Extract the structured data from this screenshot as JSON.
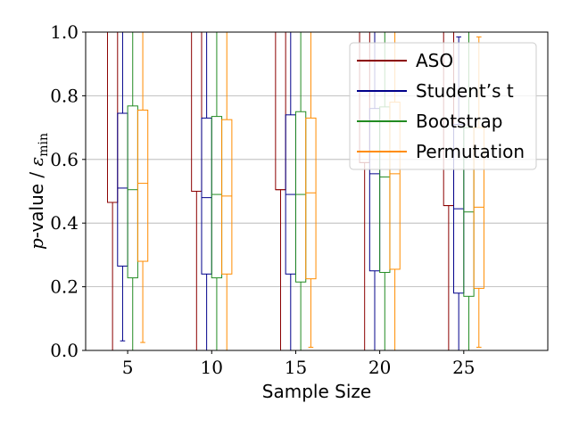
{
  "chart_data": {
    "type": "box",
    "title": "",
    "xlabel": "Sample Size",
    "ylabel_parts": {
      "p": "p",
      "rest": "-value / ",
      "eps": "ε",
      "sub": "min"
    },
    "xlim": [
      2.5,
      30
    ],
    "ylim": [
      0.0,
      1.0
    ],
    "xticks": [
      5,
      10,
      15,
      20,
      25
    ],
    "yticks": [
      0.0,
      0.2,
      0.4,
      0.6,
      0.8,
      1.0
    ],
    "ytick_labels": [
      "0.0",
      "0.2",
      "0.4",
      "0.6",
      "0.8",
      "1.0"
    ],
    "ygrid": true,
    "legend_position": "top-right",
    "categories": [
      5,
      10,
      15,
      20,
      25
    ],
    "series": [
      {
        "name": "ASO",
        "color": "#8b0000",
        "offset": -0.9,
        "boxes": [
          {
            "whislo": 0.0,
            "q1": 0.465,
            "med": 0.465,
            "q3": 1.0,
            "whishi": 1.0
          },
          {
            "whislo": 0.0,
            "q1": 0.5,
            "med": 0.5,
            "q3": 1.0,
            "whishi": 1.0
          },
          {
            "whislo": 0.0,
            "q1": 0.505,
            "med": 0.505,
            "q3": 1.0,
            "whishi": 1.0
          },
          {
            "whislo": 0.0,
            "q1": 0.59,
            "med": 0.59,
            "q3": 1.0,
            "whishi": 1.0
          },
          {
            "whislo": 0.0,
            "q1": 0.455,
            "med": 0.455,
            "q3": 1.0,
            "whishi": 1.0
          }
        ]
      },
      {
        "name": "Student’s t",
        "color": "#00008b",
        "offset": -0.3,
        "boxes": [
          {
            "whislo": 0.03,
            "q1": 0.265,
            "med": 0.51,
            "q3": 0.745,
            "whishi": 1.0
          },
          {
            "whislo": 0.0,
            "q1": 0.24,
            "med": 0.48,
            "q3": 0.73,
            "whishi": 1.0
          },
          {
            "whislo": 0.0,
            "q1": 0.24,
            "med": 0.49,
            "q3": 0.74,
            "whishi": 1.0
          },
          {
            "whislo": 0.0,
            "q1": 0.25,
            "med": 0.555,
            "q3": 0.76,
            "whishi": 1.0
          },
          {
            "whislo": 0.0,
            "q1": 0.18,
            "med": 0.445,
            "q3": 0.71,
            "whishi": 0.985
          }
        ]
      },
      {
        "name": "Bootstrap",
        "color": "#228b22",
        "offset": 0.3,
        "boxes": [
          {
            "whislo": 0.0,
            "q1": 0.228,
            "med": 0.505,
            "q3": 0.768,
            "whishi": 1.0
          },
          {
            "whislo": 0.0,
            "q1": 0.228,
            "med": 0.49,
            "q3": 0.735,
            "whishi": 1.0
          },
          {
            "whislo": 0.0,
            "q1": 0.215,
            "med": 0.49,
            "q3": 0.75,
            "whishi": 1.0
          },
          {
            "whislo": 0.0,
            "q1": 0.245,
            "med": 0.545,
            "q3": 0.765,
            "whishi": 1.0
          },
          {
            "whislo": 0.0,
            "q1": 0.17,
            "med": 0.435,
            "q3": 0.7,
            "whishi": 1.0
          }
        ]
      },
      {
        "name": "Permutation",
        "color": "#ff8c00",
        "offset": 0.9,
        "boxes": [
          {
            "whislo": 0.025,
            "q1": 0.28,
            "med": 0.525,
            "q3": 0.755,
            "whishi": 1.0
          },
          {
            "whislo": 0.0,
            "q1": 0.24,
            "med": 0.485,
            "q3": 0.725,
            "whishi": 1.0
          },
          {
            "whislo": 0.01,
            "q1": 0.225,
            "med": 0.495,
            "q3": 0.73,
            "whishi": 1.0
          },
          {
            "whislo": 0.0,
            "q1": 0.255,
            "med": 0.555,
            "q3": 0.78,
            "whishi": 1.0
          },
          {
            "whislo": 0.01,
            "q1": 0.195,
            "med": 0.45,
            "q3": 0.7,
            "whishi": 0.985
          }
        ]
      }
    ]
  }
}
